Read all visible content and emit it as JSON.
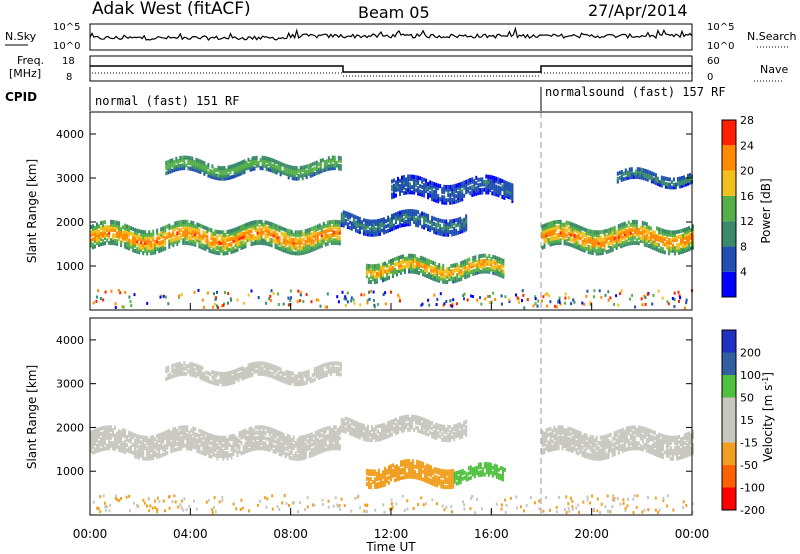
{
  "header": {
    "station": "Adak West (fitACF)",
    "beam": "Beam 05",
    "date": "27/Apr/2014"
  },
  "noise_panel": {
    "left_label": "N.Sky",
    "right_label": "N.Search",
    "left_ticks": [
      "10^5",
      "10^0"
    ],
    "right_ticks": [
      "10^5",
      "10^0"
    ]
  },
  "freq_panel": {
    "left_label_line1": "Freq.",
    "left_label_line2": "[MHz]",
    "left_ticks": [
      "18",
      "8"
    ],
    "right_label": "Nave",
    "right_ticks": [
      "60",
      "0"
    ]
  },
  "cpid_panel": {
    "label": "CPID",
    "segments": [
      "normal (fast) 151 RF",
      "normalsound (fast) 157 RF"
    ]
  },
  "xaxis": {
    "title": "Time UT",
    "tick_labels": [
      "00:00",
      "04:00",
      "08:00",
      "12:00",
      "16:00",
      "20:00",
      "00:00"
    ]
  },
  "chart_data": [
    {
      "type": "heatmap",
      "title": "Power",
      "ylabel": "Slant Range [km]",
      "xlabel": "",
      "ylim": [
        0,
        4500
      ],
      "xlim_hours": [
        0,
        24
      ],
      "y_ticks": [
        1000,
        2000,
        3000,
        4000
      ],
      "colorbar": {
        "label": "Power [dB]",
        "ticks": [
          "4",
          "8",
          "12",
          "16",
          "20",
          "24",
          "28"
        ],
        "range": [
          0,
          30
        ],
        "colors": [
          "#0000ff",
          "#1f4fb0",
          "#3a8a6a",
          "#55b04a",
          "#f0c020",
          "#ff8a00",
          "#ff2000"
        ]
      },
      "echo_bands": [
        {
          "start_h": 0.0,
          "end_h": 10.0,
          "center_km": 1700,
          "width_km": 500,
          "power_db": 24
        },
        {
          "start_h": 3.0,
          "end_h": 10.0,
          "center_km": 3300,
          "width_km": 300,
          "power_db": 16
        },
        {
          "start_h": 10.0,
          "end_h": 15.0,
          "center_km": 2050,
          "width_km": 350,
          "power_db": 10
        },
        {
          "start_h": 11.0,
          "end_h": 16.5,
          "center_km": 1000,
          "width_km": 400,
          "power_db": 22
        },
        {
          "start_h": 12.0,
          "end_h": 16.8,
          "center_km": 2800,
          "width_km": 400,
          "power_db": 8
        },
        {
          "start_h": 18.0,
          "end_h": 24.0,
          "center_km": 1700,
          "width_km": 500,
          "power_db": 24
        },
        {
          "start_h": 21.0,
          "end_h": 24.0,
          "center_km": 3050,
          "width_km": 200,
          "power_db": 12
        }
      ]
    },
    {
      "type": "heatmap",
      "title": "Velocity",
      "ylabel": "Slant Range [km]",
      "xlabel": "Time UT",
      "ylim": [
        0,
        4500
      ],
      "xlim_hours": [
        0,
        24
      ],
      "y_ticks": [
        1000,
        2000,
        3000,
        4000
      ],
      "colorbar": {
        "label": "Velocity [m s^-1]",
        "ticks": [
          "200",
          "100",
          "50",
          "15",
          "-15",
          "-50",
          "-100",
          "-200"
        ],
        "colors": [
          "#2030c0",
          "#3060a0",
          "#50c040",
          "#c8c8c0",
          "#c8c8c0",
          "#f0a020",
          "#ff6000",
          "#ff0000"
        ]
      },
      "echo_bands": [
        {
          "start_h": 0.0,
          "end_h": 10.0,
          "center_km": 1700,
          "width_km": 500,
          "velocity_ms": 0
        },
        {
          "start_h": 3.0,
          "end_h": 10.0,
          "center_km": 3300,
          "width_km": 300,
          "velocity_ms": 0
        },
        {
          "start_h": 10.0,
          "end_h": 15.0,
          "center_km": 2050,
          "width_km": 350,
          "velocity_ms": 0
        },
        {
          "start_h": 11.0,
          "end_h": 14.5,
          "center_km": 1000,
          "width_km": 400,
          "velocity_ms": -40
        },
        {
          "start_h": 14.5,
          "end_h": 16.5,
          "center_km": 1000,
          "width_km": 300,
          "velocity_ms": 40
        },
        {
          "start_h": 18.0,
          "end_h": 24.0,
          "center_km": 1700,
          "width_km": 500,
          "velocity_ms": 0
        }
      ]
    }
  ]
}
